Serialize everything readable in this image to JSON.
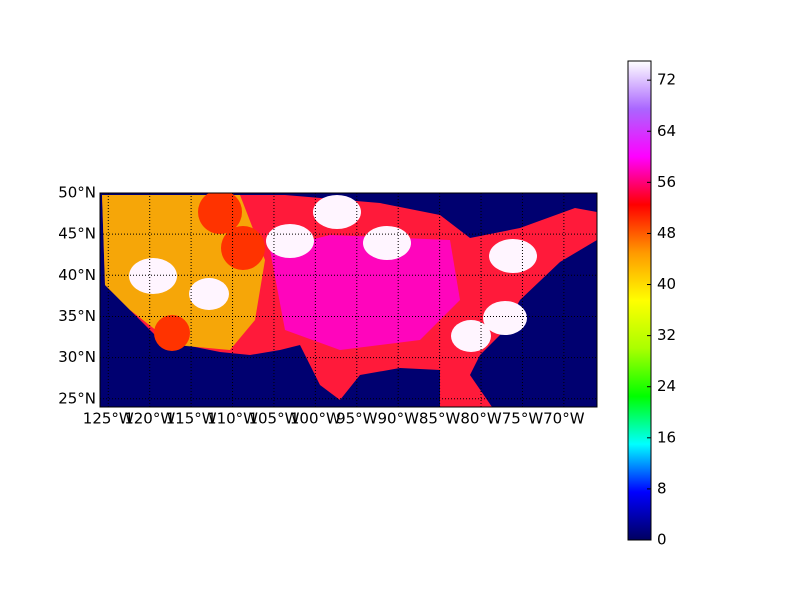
{
  "chart_data": {
    "type": "map",
    "xlim": [
      -126,
      -66
    ],
    "ylim": [
      24,
      50
    ],
    "xticks": [
      {
        "value": -125,
        "label": "125°W"
      },
      {
        "value": -120,
        "label": "120°W"
      },
      {
        "value": -115,
        "label": "115°W"
      },
      {
        "value": -110,
        "label": "110°W"
      },
      {
        "value": -105,
        "label": "105°W"
      },
      {
        "value": -100,
        "label": "100°W"
      },
      {
        "value": -95,
        "label": "95°W"
      },
      {
        "value": -90,
        "label": "90°W"
      },
      {
        "value": -85,
        "label": "85°W"
      },
      {
        "value": -80,
        "label": "80°W"
      },
      {
        "value": -75,
        "label": "75°W"
      },
      {
        "value": -70,
        "label": "70°W"
      }
    ],
    "yticks": [
      {
        "value": 50,
        "label": "50°N"
      },
      {
        "value": 45,
        "label": "45°N"
      },
      {
        "value": 40,
        "label": "40°N"
      },
      {
        "value": 35,
        "label": "35°N"
      },
      {
        "value": 30,
        "label": "30°N"
      },
      {
        "value": 25,
        "label": "25°N"
      }
    ],
    "grid": true,
    "colorbar": {
      "lim": [
        0,
        75
      ],
      "ticks": [
        0,
        8,
        16,
        24,
        32,
        40,
        48,
        56,
        64,
        72
      ],
      "colors": [
        "#000060",
        "#0000ff",
        "#00ffff",
        "#00ff00",
        "#aaff00",
        "#ffff00",
        "#ff9900",
        "#ff0000",
        "#ff00ff",
        "#aa66ff",
        "#ffffff"
      ]
    }
  }
}
